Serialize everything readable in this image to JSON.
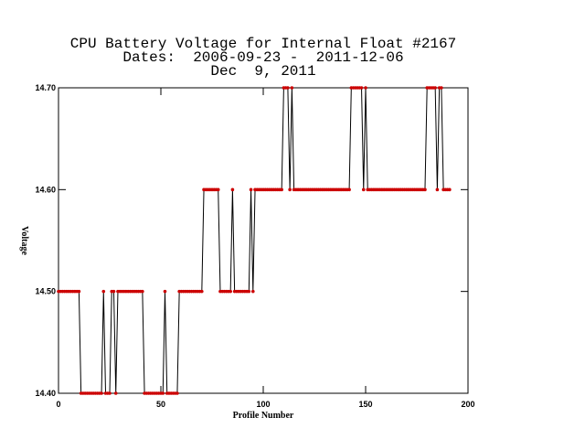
{
  "chart_data": {
    "type": "line",
    "title": "CPU Battery Voltage for Internal Float #2167",
    "subtitle": "Dates:  2006-09-23 -  2011-12-06",
    "date": "Dec  9, 2011",
    "xlabel": "Profile Number",
    "ylabel": "Voltage",
    "xlim": [
      0,
      200
    ],
    "xticks": [
      0,
      50,
      100,
      150,
      200
    ],
    "ylim": [
      14.4,
      14.7
    ],
    "yticks": [
      {
        "value": 14.4,
        "label": "14.40"
      },
      {
        "value": 14.5,
        "label": "14.50"
      },
      {
        "value": 14.6,
        "label": "14.60"
      },
      {
        "value": 14.7,
        "label": "14.70"
      }
    ],
    "line_color": "#000000",
    "marker_color": "#cc0000",
    "x": [
      0,
      1,
      2,
      3,
      4,
      5,
      6,
      7,
      8,
      9,
      10,
      11,
      12,
      13,
      14,
      15,
      16,
      17,
      18,
      19,
      20,
      21,
      22,
      23,
      24,
      25,
      26,
      27,
      28,
      29,
      30,
      31,
      32,
      33,
      34,
      35,
      36,
      37,
      38,
      39,
      40,
      41,
      42,
      43,
      44,
      45,
      46,
      47,
      48,
      49,
      50,
      51,
      52,
      53,
      54,
      55,
      56,
      57,
      58,
      59,
      60,
      61,
      62,
      63,
      64,
      65,
      66,
      67,
      68,
      69,
      70,
      71,
      72,
      73,
      74,
      75,
      76,
      77,
      78,
      79,
      80,
      81,
      82,
      83,
      84,
      85,
      86,
      87,
      88,
      89,
      90,
      91,
      92,
      93,
      94,
      95,
      96,
      97,
      98,
      99,
      100,
      101,
      102,
      103,
      104,
      105,
      106,
      107,
      108,
      109,
      110,
      111,
      112,
      113,
      114,
      115,
      116,
      117,
      118,
      119,
      120,
      121,
      122,
      123,
      124,
      125,
      126,
      127,
      128,
      129,
      130,
      131,
      132,
      133,
      134,
      135,
      136,
      137,
      138,
      139,
      140,
      141,
      142,
      143,
      144,
      145,
      146,
      147,
      148,
      149,
      150,
      151,
      152,
      153,
      154,
      155,
      156,
      157,
      158,
      159,
      160,
      161,
      162,
      163,
      164,
      165,
      166,
      167,
      168,
      169,
      170,
      171,
      172,
      173,
      174,
      175,
      176,
      177,
      178,
      179,
      180,
      181,
      182,
      183,
      184,
      185,
      186,
      187,
      188,
      189,
      190,
      191
    ],
    "values": [
      14.5,
      14.5,
      14.5,
      14.5,
      14.5,
      14.5,
      14.5,
      14.5,
      14.5,
      14.5,
      14.5,
      14.4,
      14.4,
      14.4,
      14.4,
      14.4,
      14.4,
      14.4,
      14.4,
      14.4,
      14.4,
      14.4,
      14.5,
      14.4,
      14.4,
      14.4,
      14.5,
      14.5,
      14.4,
      14.5,
      14.5,
      14.5,
      14.5,
      14.5,
      14.5,
      14.5,
      14.5,
      14.5,
      14.5,
      14.5,
      14.5,
      14.5,
      14.4,
      14.4,
      14.4,
      14.4,
      14.4,
      14.4,
      14.4,
      14.4,
      14.4,
      14.4,
      14.5,
      14.4,
      14.4,
      14.4,
      14.4,
      14.4,
      14.4,
      14.5,
      14.5,
      14.5,
      14.5,
      14.5,
      14.5,
      14.5,
      14.5,
      14.5,
      14.5,
      14.5,
      14.5,
      14.6,
      14.6,
      14.6,
      14.6,
      14.6,
      14.6,
      14.6,
      14.6,
      14.5,
      14.5,
      14.5,
      14.5,
      14.5,
      14.5,
      14.6,
      14.5,
      14.5,
      14.5,
      14.5,
      14.5,
      14.5,
      14.5,
      14.5,
      14.6,
      14.5,
      14.6,
      14.6,
      14.6,
      14.6,
      14.6,
      14.6,
      14.6,
      14.6,
      14.6,
      14.6,
      14.6,
      14.6,
      14.6,
      14.6,
      14.7,
      14.7,
      14.7,
      14.6,
      14.7,
      14.6,
      14.6,
      14.6,
      14.6,
      14.6,
      14.6,
      14.6,
      14.6,
      14.6,
      14.6,
      14.6,
      14.6,
      14.6,
      14.6,
      14.6,
      14.6,
      14.6,
      14.6,
      14.6,
      14.6,
      14.6,
      14.6,
      14.6,
      14.6,
      14.6,
      14.6,
      14.6,
      14.6,
      14.7,
      14.7,
      14.7,
      14.7,
      14.7,
      14.7,
      14.6,
      14.7,
      14.6,
      14.6,
      14.6,
      14.6,
      14.6,
      14.6,
      14.6,
      14.6,
      14.6,
      14.6,
      14.6,
      14.6,
      14.6,
      14.6,
      14.6,
      14.6,
      14.6,
      14.6,
      14.6,
      14.6,
      14.6,
      14.6,
      14.6,
      14.6,
      14.6,
      14.6,
      14.6,
      14.6,
      14.6,
      14.7,
      14.7,
      14.7,
      14.7,
      14.7,
      14.6,
      14.7,
      14.7,
      14.6,
      14.6,
      14.6,
      14.6
    ]
  }
}
